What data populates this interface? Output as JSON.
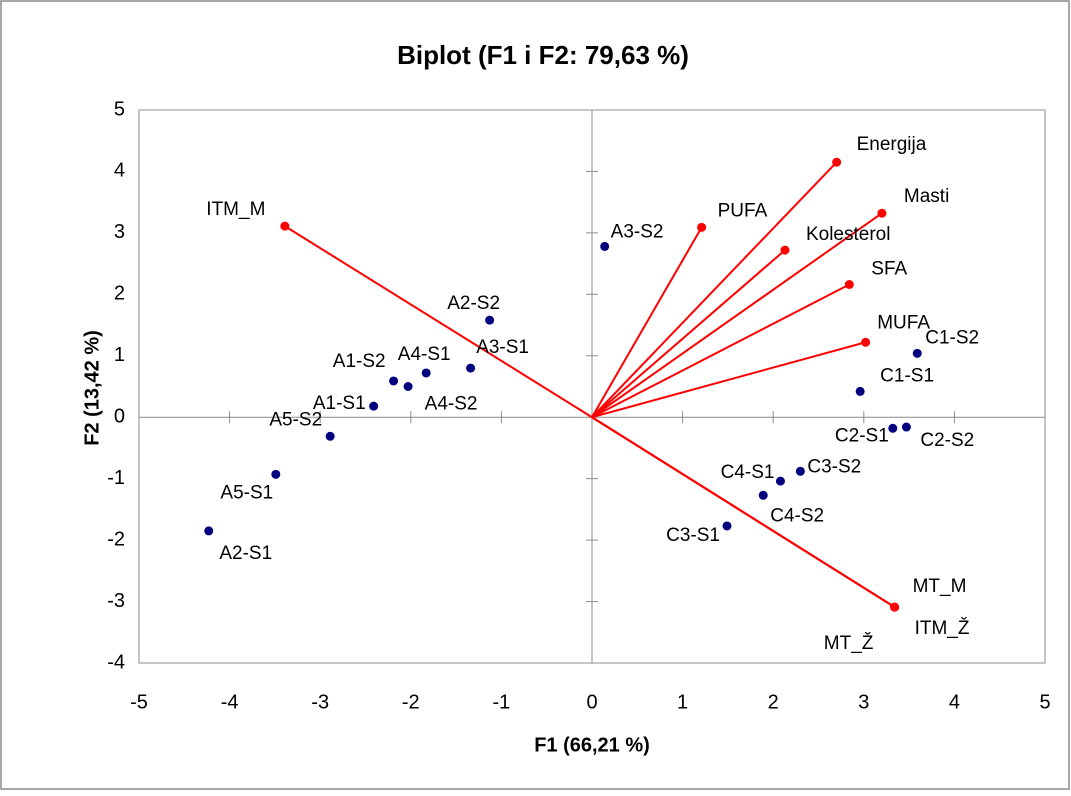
{
  "chart_data": {
    "type": "biplot",
    "title": "Biplot (F1 i F2: 79,63 %)",
    "x_label": "F1 (66,21 %)",
    "y_label": "F2 (13,42 %)",
    "xlim": [
      -5,
      5
    ],
    "ylim": [
      -4,
      5
    ],
    "xticks": [
      -5,
      -4,
      -3,
      -2,
      -1,
      0,
      1,
      2,
      3,
      4,
      5
    ],
    "yticks": [
      -4,
      -3,
      -2,
      -1,
      0,
      1,
      2,
      3,
      4,
      5
    ],
    "points": {
      "color": "#00007f",
      "labels": [
        "A3-S2",
        "A2-S2",
        "A3-S1",
        "A4-S1",
        "A1-S2",
        "A4-S2",
        "A1-S1",
        "A5-S2",
        "A5-S1",
        "A2-S1",
        "C1-S2",
        "C1-S1",
        "C2-S1",
        "C2-S2",
        "C3-S2",
        "C4-S1",
        "C4-S2",
        "C3-S1"
      ],
      "x": [
        0.14,
        -1.13,
        -1.34,
        -1.83,
        -2.19,
        -2.03,
        -2.41,
        -2.89,
        -3.49,
        -4.23,
        3.59,
        2.96,
        3.32,
        3.47,
        2.3,
        2.08,
        1.89,
        1.49
      ],
      "y": [
        2.78,
        1.58,
        0.8,
        0.72,
        0.59,
        0.5,
        0.18,
        -0.31,
        -0.93,
        -1.85,
        1.04,
        0.42,
        -0.18,
        -0.16,
        -0.88,
        -1.04,
        -1.27,
        -1.77
      ]
    },
    "vectors": {
      "color": "#ff0000",
      "labels": [
        "Energija",
        "Masti",
        "PUFA",
        "Kolesterol",
        "SFA",
        "MUFA",
        "ITM_M",
        "MT_M",
        "ITM_Ž",
        "MT_Ž"
      ],
      "x": [
        2.7,
        3.2,
        1.21,
        2.13,
        2.84,
        3.02,
        -3.39,
        3.34,
        3.34,
        3.34
      ],
      "y": [
        4.15,
        3.32,
        3.09,
        2.72,
        2.16,
        1.22,
        3.11,
        -3.09,
        -3.09,
        -3.09
      ]
    }
  }
}
